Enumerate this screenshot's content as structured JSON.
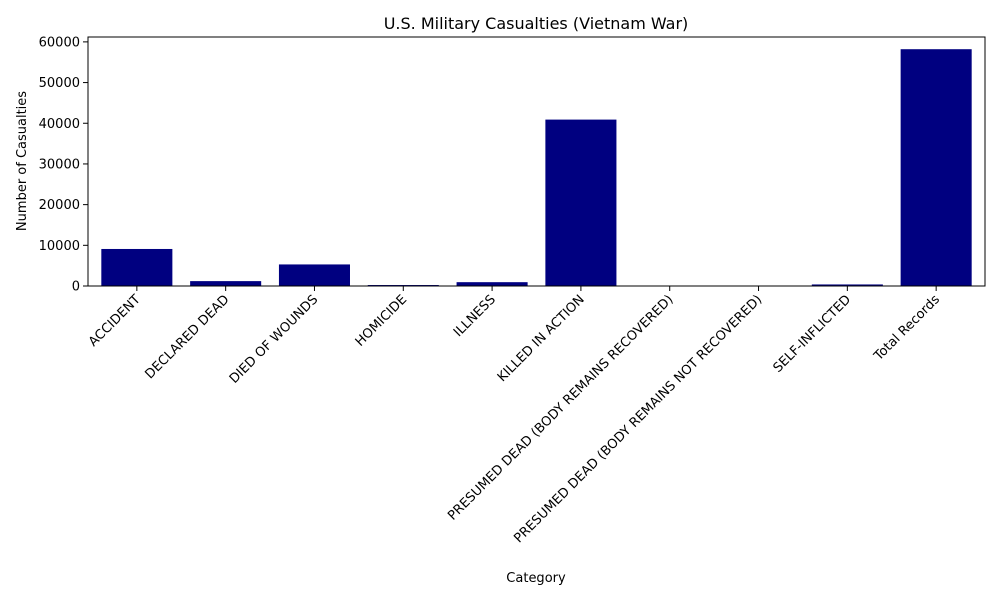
{
  "chart_data": {
    "type": "bar",
    "title": "U.S. Military Casualties (Vietnam War)",
    "xlabel": "Category",
    "ylabel": "Number of Casualties",
    "ylim": [
      0,
      61200
    ],
    "yticks": [
      0,
      10000,
      20000,
      30000,
      40000,
      50000,
      60000
    ],
    "grid": false,
    "bar_color": "#000080",
    "categories": [
      "ACCIDENT",
      "DECLARED DEAD",
      "DIED OF WOUNDS",
      "HOMICIDE",
      "ILLNESS",
      "KILLED IN ACTION",
      "PRESUMED DEAD (BODY REMAINS RECOVERED)",
      "PRESUMED DEAD (BODY REMAINS NOT RECOVERED)",
      "SELF-INFLICTED",
      "Total Records"
    ],
    "values": [
      9100,
      1200,
      5300,
      240,
      940,
      40900,
      30,
      30,
      380,
      58200
    ]
  }
}
